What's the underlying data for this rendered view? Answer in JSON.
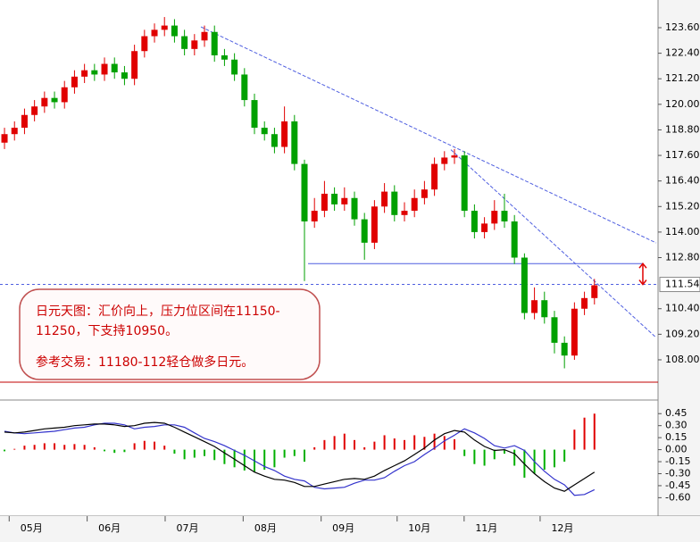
{
  "chart_data": [
    {
      "type": "candlestick",
      "xlim": [
        -0.45,
        65.36
      ],
      "ylim": [
        106.95,
        124.9
      ],
      "yticks": [
        {
          "value": 123.6,
          "label": "123.60"
        },
        {
          "value": 122.4,
          "label": "122.40"
        },
        {
          "value": 121.2,
          "label": "121.20"
        },
        {
          "value": 120.0,
          "label": "120.00"
        },
        {
          "value": 118.8,
          "label": "118.80"
        },
        {
          "value": 117.6,
          "label": "117.60"
        },
        {
          "value": 116.4,
          "label": "116.40"
        },
        {
          "value": 115.2,
          "label": "115.20"
        },
        {
          "value": 114.0,
          "label": "114.00"
        },
        {
          "value": 112.8,
          "label": "112.80"
        },
        {
          "value": 110.4,
          "label": "110.40"
        },
        {
          "value": 109.2,
          "label": "109.20"
        },
        {
          "value": 108.0,
          "label": "108.00"
        }
      ],
      "last_price": 111.54,
      "up_color": "#e00000",
      "down_color": "#00a000",
      "line_color": "#4f5fe0",
      "open": [
        118.2,
        118.6,
        118.9,
        119.5,
        119.9,
        120.3,
        120.1,
        120.8,
        121.3,
        121.6,
        121.4,
        121.9,
        121.5,
        121.2,
        122.5,
        123.2,
        123.5,
        123.7,
        123.2,
        122.6,
        123.0,
        123.4,
        122.3,
        122.1,
        121.4,
        120.2,
        118.9,
        118.6,
        118.0,
        119.2,
        117.2,
        114.5,
        115.0,
        115.8,
        115.3,
        115.6,
        114.6,
        113.5,
        115.2,
        115.9,
        114.8,
        115.0,
        115.6,
        116.0,
        117.2,
        117.5,
        117.6,
        115.0,
        114.0,
        114.4,
        115.0,
        114.5,
        112.8,
        110.2,
        110.8,
        110.0,
        108.8,
        108.2,
        110.4,
        110.9
      ],
      "high": [
        118.9,
        119.2,
        119.8,
        120.2,
        120.6,
        120.6,
        121.1,
        121.6,
        121.9,
        121.9,
        122.2,
        122.2,
        121.8,
        122.8,
        123.5,
        123.8,
        124.1,
        124.0,
        123.5,
        123.3,
        123.7,
        123.7,
        122.6,
        122.4,
        121.7,
        120.5,
        119.2,
        118.9,
        119.9,
        119.5,
        117.4,
        115.6,
        116.4,
        116.1,
        116.1,
        115.9,
        114.9,
        115.5,
        116.3,
        116.2,
        115.4,
        116.0,
        116.4,
        117.5,
        117.8,
        117.9,
        117.8,
        115.3,
        114.7,
        115.5,
        115.8,
        114.8,
        113.0,
        111.4,
        111.2,
        110.3,
        109.1,
        110.7,
        111.2,
        111.8
      ],
      "low": [
        117.9,
        118.3,
        118.6,
        119.2,
        119.6,
        119.8,
        119.8,
        120.5,
        121.0,
        121.1,
        121.1,
        121.2,
        120.9,
        120.9,
        122.2,
        122.9,
        123.2,
        122.9,
        122.3,
        122.3,
        122.7,
        122.0,
        121.8,
        121.1,
        119.9,
        118.6,
        118.3,
        117.7,
        117.7,
        116.9,
        111.7,
        114.2,
        114.7,
        115.0,
        115.0,
        114.3,
        112.7,
        113.2,
        114.9,
        114.5,
        114.5,
        114.7,
        115.3,
        115.7,
        116.9,
        117.2,
        114.7,
        113.7,
        113.7,
        114.1,
        114.2,
        112.5,
        109.9,
        109.9,
        109.7,
        108.3,
        107.6,
        108.0,
        110.1,
        110.6
      ],
      "close": [
        118.6,
        118.9,
        119.5,
        119.9,
        120.3,
        120.1,
        120.8,
        121.3,
        121.6,
        121.4,
        121.9,
        121.5,
        121.2,
        122.5,
        123.2,
        123.5,
        123.7,
        123.2,
        122.6,
        123.0,
        123.4,
        122.3,
        122.1,
        121.4,
        120.2,
        118.9,
        118.6,
        118.0,
        119.2,
        117.2,
        114.5,
        115.0,
        115.8,
        115.3,
        115.6,
        114.6,
        113.5,
        115.2,
        115.9,
        114.8,
        115.0,
        115.6,
        116.0,
        117.2,
        117.5,
        117.6,
        115.0,
        114.0,
        114.4,
        115.0,
        114.5,
        112.8,
        110.2,
        110.8,
        110.0,
        108.8,
        108.2,
        110.4,
        110.9,
        111.5
      ],
      "trendlines": [
        {
          "x": [
            19.64,
            65.18
          ],
          "y": [
            123.64,
            113.49
          ]
        },
        {
          "x": [
            44.64,
            65.18
          ],
          "y": [
            117.87,
            109.04
          ]
        }
      ],
      "support_line": {
        "x": [
          30.36,
          63.84
        ],
        "y": 112.52
      },
      "annotation": [
        "日元天图：汇价向上，压力位区间在11150-",
        "11250，下支持10950。",
        "参考交易：11180-112轻仓做多日元。"
      ]
    },
    {
      "type": "macd",
      "xlim": [
        -0.45,
        65.36
      ],
      "ylim": [
        -0.83,
        0.62
      ],
      "yticks": [
        0.45,
        {
          "value": 0.3,
          "label": "0.30"
        },
        0.15,
        {
          "value": 0.0,
          "label": "0.00"
        },
        {
          "value": -0.15,
          "label": "-0.15"
        },
        {
          "value": -0.3,
          "label": "-0.30"
        },
        {
          "value": -0.45,
          "label": "-0.45"
        },
        {
          "value": -0.6,
          "label": "-0.60"
        }
      ],
      "xticks": [
        {
          "value": 2.7,
          "label": "05月"
        },
        {
          "value": 10.5,
          "label": "06月"
        },
        {
          "value": 18.3,
          "label": "07月"
        },
        {
          "value": 26.1,
          "label": "08月"
        },
        {
          "value": 33.9,
          "label": "09月"
        },
        {
          "value": 41.5,
          "label": "10月"
        },
        {
          "value": 48.2,
          "label": "11月"
        },
        {
          "value": 55.8,
          "label": "12月"
        }
      ],
      "up_color": "#e00000",
      "down_color": "#00b000",
      "histogram": [
        -0.02,
        0.01,
        0.05,
        0.06,
        0.08,
        0.08,
        0.06,
        0.07,
        0.06,
        0.03,
        -0.02,
        -0.04,
        -0.03,
        0.08,
        0.11,
        0.1,
        0.05,
        -0.05,
        -0.12,
        -0.1,
        -0.08,
        -0.13,
        -0.18,
        -0.22,
        -0.26,
        -0.28,
        -0.25,
        -0.22,
        -0.1,
        -0.08,
        -0.15,
        0.03,
        0.12,
        0.17,
        0.2,
        0.12,
        0.03,
        0.1,
        0.18,
        0.14,
        0.12,
        0.18,
        0.16,
        0.2,
        0.17,
        0.13,
        -0.08,
        -0.18,
        -0.2,
        -0.12,
        -0.05,
        -0.2,
        -0.35,
        -0.3,
        -0.25,
        -0.22,
        -0.15,
        0.25,
        0.4,
        0.45
      ],
      "dif": {
        "color": "#000000",
        "values": [
          0.22,
          0.21,
          0.22,
          0.24,
          0.26,
          0.27,
          0.28,
          0.3,
          0.31,
          0.32,
          0.32,
          0.31,
          0.29,
          0.3,
          0.33,
          0.34,
          0.33,
          0.28,
          0.22,
          0.16,
          0.1,
          0.04,
          -0.04,
          -0.12,
          -0.2,
          -0.28,
          -0.33,
          -0.37,
          -0.38,
          -0.41,
          -0.46,
          -0.46,
          -0.43,
          -0.4,
          -0.37,
          -0.36,
          -0.37,
          -0.33,
          -0.26,
          -0.2,
          -0.14,
          -0.06,
          0.02,
          0.12,
          0.2,
          0.24,
          0.22,
          0.12,
          0.04,
          -0.01,
          0.0,
          -0.05,
          -0.18,
          -0.3,
          -0.4,
          -0.48,
          -0.52,
          -0.44,
          -0.36,
          -0.28
        ]
      },
      "dea": {
        "color": "#3333cc",
        "values": [
          0.23,
          0.21,
          0.2,
          0.21,
          0.22,
          0.23,
          0.25,
          0.27,
          0.28,
          0.31,
          0.33,
          0.33,
          0.31,
          0.26,
          0.28,
          0.29,
          0.31,
          0.31,
          0.28,
          0.21,
          0.14,
          0.1,
          0.05,
          -0.01,
          -0.07,
          -0.14,
          -0.21,
          -0.26,
          -0.33,
          -0.37,
          -0.39,
          -0.47,
          -0.49,
          -0.48,
          -0.47,
          -0.42,
          -0.38,
          -0.38,
          -0.35,
          -0.27,
          -0.2,
          -0.15,
          -0.06,
          0.02,
          0.11,
          0.18,
          0.26,
          0.21,
          0.14,
          0.05,
          0.02,
          0.05,
          -0.01,
          -0.15,
          -0.27,
          -0.37,
          -0.44,
          -0.57,
          -0.56,
          -0.5
        ]
      }
    }
  ]
}
